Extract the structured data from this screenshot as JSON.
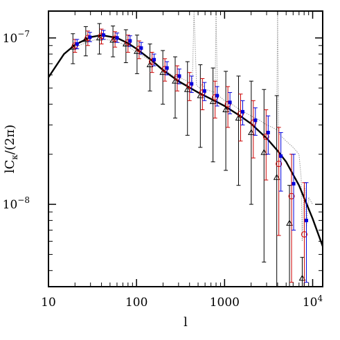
{
  "chart_data": {
    "type": "scatter",
    "xlabel": "l",
    "ylabel_html": "lC<sub>κ</sub>/(2π)",
    "xscale": "log",
    "yscale": "log",
    "xlim": [
      10,
      13000
    ],
    "ylim": [
      3.2e-09,
      1.45e-07
    ],
    "grid": false,
    "x_ticks": [
      {
        "value": 10,
        "label": "10"
      },
      {
        "value": 100,
        "label": "100"
      },
      {
        "value": 1000,
        "label": "1000"
      },
      {
        "value": 10000,
        "label": "10",
        "sup": "4"
      }
    ],
    "y_ticks": [
      {
        "value": 1e-08,
        "label": "10",
        "sup": "−8"
      },
      {
        "value": 1e-07,
        "label": "10",
        "sup": "−7"
      }
    ],
    "theory_curve": {
      "color": "#000000",
      "x": [
        10,
        15,
        20,
        30,
        40,
        60,
        80,
        100,
        150,
        200,
        300,
        500,
        800,
        1000,
        1500,
        2000,
        3000,
        4000,
        5000,
        7000,
        10000,
        13000
      ],
      "y": [
        5.8e-08,
        8e-08,
        9.1e-08,
        1.01e-07,
        1.04e-07,
        1e-07,
        9.3e-08,
        8.6e-08,
        7.3e-08,
        6.4e-08,
        5.5e-08,
        4.7e-08,
        4.15e-08,
        3.9e-08,
        3.4e-08,
        3.05e-08,
        2.5e-08,
        2.1e-08,
        1.8e-08,
        1.3e-08,
        8.2e-09,
        5.6e-09
      ]
    },
    "noise_curve": {
      "color": "#999999",
      "x": [
        20,
        30,
        40,
        60,
        80,
        100,
        150,
        200,
        250,
        300,
        380,
        430,
        450,
        480,
        520,
        560,
        600,
        700,
        780,
        800,
        830,
        900,
        1000,
        1200,
        1500,
        2000,
        2500,
        3000,
        3500,
        3900,
        4000,
        4100,
        4300,
        5000,
        6000,
        7000,
        7400,
        7600,
        8000,
        8300,
        8500,
        9000,
        10000
      ],
      "y": [
        8.8e-08,
        9.6e-08,
        9.9e-08,
        9.5e-08,
        8.9e-08,
        8.2e-08,
        7.2e-08,
        6.5e-08,
        6e-08,
        5.8e-08,
        5.5e-08,
        5.3e-08,
        1.45e-07,
        5.2e-08,
        5e-08,
        5.3e-08,
        4.9e-08,
        4.8e-08,
        4.7e-08,
        1.45e-07,
        4.6e-08,
        4.4e-08,
        4.2e-08,
        4e-08,
        3.7e-08,
        3.4e-08,
        3.2e-08,
        3e-08,
        2.9e-08,
        2.8e-08,
        1.45e-07,
        2.7e-08,
        2.6e-08,
        2.4e-08,
        2.2e-08,
        2e-08,
        1.45e-08,
        6e-09,
        1.3e-08,
        1.2e-08,
        7e-09,
        1.1e-08,
        1e-08
      ]
    },
    "series": [
      {
        "marker": "triangle-open",
        "color": "#000000",
        "offset": 1.0,
        "x": [
          20,
          28,
          40,
          57,
          80,
          107,
          150,
          210,
          290,
          400,
          560,
          780,
          1090,
          1520,
          2120,
          2960,
          4130,
          5760,
          8040
        ],
        "y": [
          8.8e-08,
          9.8e-08,
          1e-07,
          9.7e-08,
          9.2e-08,
          8.3e-08,
          6.9e-08,
          6.2e-08,
          5.5e-08,
          4.9e-08,
          4.5e-08,
          4.15e-08,
          3.7e-08,
          3.3e-08,
          2.7e-08,
          2.05e-08,
          1.45e-08,
          7.7e-09,
          3.6e-09
        ],
        "err_low": [
          7e-08,
          7.8e-08,
          8e-08,
          7.7e-08,
          7.1e-08,
          6.1e-08,
          4.8e-08,
          4e-08,
          3.3e-08,
          2.6e-08,
          2.2e-08,
          1.8e-08,
          1.6e-08,
          1.3e-08,
          1e-08,
          4.5e-09,
          3.2e-09,
          3.2e-09,
          3.2e-09
        ],
        "err_high": [
          1.06e-07,
          1.17e-07,
          1.22e-07,
          1.18e-07,
          1.12e-07,
          1.04e-07,
          9.2e-08,
          8.4e-08,
          7.7e-08,
          7.2e-08,
          6.9e-08,
          6.6e-08,
          6.3e-08,
          5.9e-08,
          5.5e-08,
          4.9e-08,
          4.5e-08,
          1.3e-08,
          4.8e-09
        ]
      },
      {
        "marker": "circle-open",
        "color": "#cc0000",
        "offset": 1.0,
        "x": [
          20,
          28,
          40,
          57,
          80,
          107,
          150,
          210,
          290,
          400,
          560,
          780,
          1090,
          1520,
          2120,
          2960,
          4130,
          5760,
          8040
        ],
        "y": [
          9e-08,
          1e-07,
          1.03e-07,
          9.9e-08,
          9.4e-08,
          8.6e-08,
          7.2e-08,
          6.5e-08,
          5.8e-08,
          5.2e-08,
          4.7e-08,
          4.4e-08,
          4e-08,
          3.5e-08,
          3.1e-08,
          2.55e-08,
          1.75e-08,
          1.12e-08,
          6.6e-09
        ],
        "err_low": [
          8.2e-08,
          9e-08,
          9.2e-08,
          8.8e-08,
          8.2e-08,
          7.5e-08,
          6.2e-08,
          5.5e-08,
          4.8e-08,
          4.2e-08,
          3.7e-08,
          3.3e-08,
          2.9e-08,
          2.4e-08,
          1.9e-08,
          1.4e-08,
          6.5e-09,
          3.4e-09,
          3.2e-09
        ],
        "err_high": [
          9.8e-08,
          1.1e-07,
          1.13e-07,
          1.09e-07,
          1.04e-07,
          9.6e-08,
          8.2e-08,
          7.5e-08,
          6.8e-08,
          6.2e-08,
          5.7e-08,
          5.5e-08,
          5.1e-08,
          4.6e-08,
          4.2e-08,
          3.7e-08,
          2.9e-08,
          2e-08,
          1.35e-08
        ]
      },
      {
        "marker": "square-filled",
        "color": "#0000dd",
        "offset": 1.0,
        "x": [
          20,
          28,
          40,
          57,
          80,
          107,
          150,
          210,
          290,
          400,
          560,
          780,
          1090,
          1520,
          2120,
          2960,
          4130,
          5760,
          8040
        ],
        "y": [
          9.2e-08,
          1.01e-07,
          1.04e-07,
          1e-07,
          9.6e-08,
          8.7e-08,
          7.4e-08,
          6.6e-08,
          5.9e-08,
          5.3e-08,
          4.8e-08,
          4.5e-08,
          4.1e-08,
          3.6e-08,
          3.2e-08,
          2.7e-08,
          1.95e-08,
          1.33e-08,
          8e-09
        ],
        "err_low": [
          8.6e-08,
          9.5e-08,
          9.8e-08,
          9.4e-08,
          8.9e-08,
          8e-08,
          6.8e-08,
          6e-08,
          5.3e-08,
          4.7e-08,
          4.2e-08,
          3.9e-08,
          3.5e-08,
          3e-08,
          2.6e-08,
          2e-08,
          1.2e-08,
          7e-09,
          3.4e-09
        ],
        "err_high": [
          9.8e-08,
          1.08e-07,
          1.11e-07,
          1.07e-07,
          1.03e-07,
          9.4e-08,
          8e-08,
          7.2e-08,
          6.5e-08,
          5.9e-08,
          5.4e-08,
          5.1e-08,
          4.7e-08,
          4.2e-08,
          3.8e-08,
          3.4e-08,
          2.7e-08,
          2e-08,
          1.35e-08
        ]
      }
    ]
  }
}
